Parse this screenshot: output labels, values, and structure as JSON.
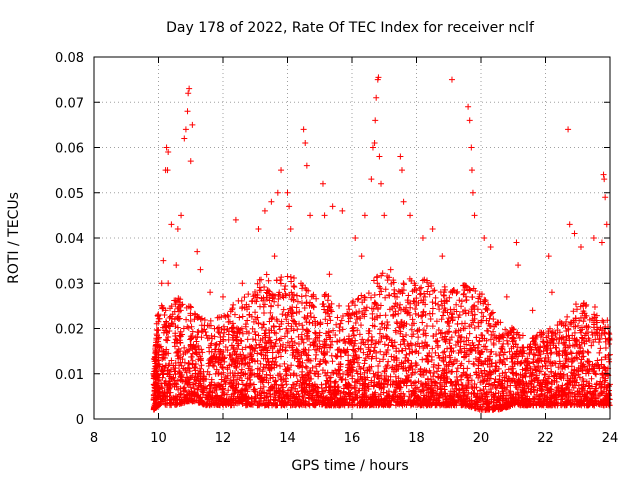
{
  "chart_data": {
    "type": "scatter",
    "title": "Day 178 of 2022, Rate Of TEC Index for receiver nclf",
    "xlabel": "GPS time / hours",
    "ylabel": "ROTI / TECUs",
    "xlim": [
      8,
      24
    ],
    "ylim": [
      0,
      0.08
    ],
    "xticks": [
      "8",
      "10",
      "12",
      "14",
      "16",
      "18",
      "20",
      "22",
      "24"
    ],
    "yticks": [
      "0",
      "0.01",
      "0.02",
      "0.03",
      "0.04",
      "0.05",
      "0.06",
      "0.07",
      "0.08"
    ],
    "grid": true,
    "marker": "+",
    "color": "#ff0000",
    "series": [
      {
        "name": "ROTI",
        "points": [
          [
            10.55,
            0.034
          ],
          [
            10.6,
            0.042
          ],
          [
            10.7,
            0.045
          ],
          [
            10.8,
            0.062
          ],
          [
            10.85,
            0.064
          ],
          [
            10.9,
            0.068
          ],
          [
            10.92,
            0.072
          ],
          [
            10.95,
            0.073
          ],
          [
            11.0,
            0.057
          ],
          [
            11.05,
            0.065
          ],
          [
            10.25,
            0.06
          ],
          [
            10.3,
            0.059
          ],
          [
            10.22,
            0.055
          ],
          [
            10.28,
            0.055
          ],
          [
            10.4,
            0.043
          ],
          [
            10.1,
            0.03
          ],
          [
            10.15,
            0.035
          ],
          [
            10.3,
            0.03
          ],
          [
            11.2,
            0.037
          ],
          [
            11.3,
            0.033
          ],
          [
            13.1,
            0.042
          ],
          [
            13.3,
            0.046
          ],
          [
            13.5,
            0.048
          ],
          [
            13.7,
            0.05
          ],
          [
            13.8,
            0.055
          ],
          [
            14.0,
            0.05
          ],
          [
            14.05,
            0.047
          ],
          [
            14.1,
            0.042
          ],
          [
            14.5,
            0.064
          ],
          [
            14.55,
            0.061
          ],
          [
            14.6,
            0.056
          ],
          [
            14.7,
            0.045
          ],
          [
            15.1,
            0.052
          ],
          [
            15.15,
            0.045
          ],
          [
            15.4,
            0.047
          ],
          [
            15.7,
            0.046
          ],
          [
            16.1,
            0.04
          ],
          [
            16.3,
            0.036
          ],
          [
            16.6,
            0.053
          ],
          [
            16.65,
            0.06
          ],
          [
            16.7,
            0.061
          ],
          [
            16.72,
            0.066
          ],
          [
            16.75,
            0.071
          ],
          [
            16.8,
            0.075
          ],
          [
            16.82,
            0.0755
          ],
          [
            16.85,
            0.058
          ],
          [
            16.9,
            0.052
          ],
          [
            17.0,
            0.045
          ],
          [
            17.5,
            0.058
          ],
          [
            17.55,
            0.055
          ],
          [
            17.6,
            0.048
          ],
          [
            17.8,
            0.045
          ],
          [
            18.2,
            0.04
          ],
          [
            18.5,
            0.042
          ],
          [
            19.1,
            0.075
          ],
          [
            19.6,
            0.069
          ],
          [
            19.65,
            0.066
          ],
          [
            19.7,
            0.06
          ],
          [
            19.72,
            0.055
          ],
          [
            19.75,
            0.05
          ],
          [
            19.8,
            0.045
          ],
          [
            20.1,
            0.04
          ],
          [
            20.3,
            0.038
          ],
          [
            21.1,
            0.039
          ],
          [
            21.15,
            0.034
          ],
          [
            22.1,
            0.036
          ],
          [
            22.7,
            0.064
          ],
          [
            22.75,
            0.043
          ],
          [
            22.9,
            0.041
          ],
          [
            23.1,
            0.038
          ],
          [
            23.5,
            0.04
          ],
          [
            23.8,
            0.054
          ],
          [
            23.82,
            0.053
          ],
          [
            23.85,
            0.049
          ],
          [
            23.9,
            0.043
          ],
          [
            23.75,
            0.039
          ],
          [
            11.6,
            0.028
          ],
          [
            12.0,
            0.027
          ],
          [
            12.4,
            0.044
          ],
          [
            12.6,
            0.03
          ],
          [
            13.6,
            0.036
          ],
          [
            15.3,
            0.032
          ],
          [
            16.4,
            0.045
          ],
          [
            17.2,
            0.033
          ],
          [
            18.8,
            0.036
          ],
          [
            20.8,
            0.027
          ],
          [
            21.6,
            0.024
          ],
          [
            22.2,
            0.028
          ]
        ],
        "band": [
          [
            9.85,
            0.002,
            0.013
          ],
          [
            10.0,
            0.003,
            0.026
          ],
          [
            10.5,
            0.003,
            0.028
          ],
          [
            11.0,
            0.004,
            0.025
          ],
          [
            11.5,
            0.003,
            0.022
          ],
          [
            12.0,
            0.003,
            0.023
          ],
          [
            12.5,
            0.003,
            0.027
          ],
          [
            13.0,
            0.003,
            0.03
          ],
          [
            13.5,
            0.003,
            0.033
          ],
          [
            14.0,
            0.003,
            0.032
          ],
          [
            14.5,
            0.003,
            0.03
          ],
          [
            15.0,
            0.003,
            0.028
          ],
          [
            15.5,
            0.003,
            0.027
          ],
          [
            16.0,
            0.003,
            0.026
          ],
          [
            16.5,
            0.003,
            0.03
          ],
          [
            17.0,
            0.003,
            0.033
          ],
          [
            17.5,
            0.003,
            0.03
          ],
          [
            18.0,
            0.003,
            0.032
          ],
          [
            18.5,
            0.003,
            0.03
          ],
          [
            19.0,
            0.003,
            0.029
          ],
          [
            19.5,
            0.003,
            0.03
          ],
          [
            20.0,
            0.002,
            0.028
          ],
          [
            20.5,
            0.002,
            0.022
          ],
          [
            21.0,
            0.003,
            0.02
          ],
          [
            21.5,
            0.003,
            0.018
          ],
          [
            22.0,
            0.003,
            0.02
          ],
          [
            22.5,
            0.003,
            0.022
          ],
          [
            23.0,
            0.003,
            0.026
          ],
          [
            23.5,
            0.003,
            0.025
          ],
          [
            24.0,
            0.003,
            0.022
          ]
        ]
      }
    ]
  }
}
